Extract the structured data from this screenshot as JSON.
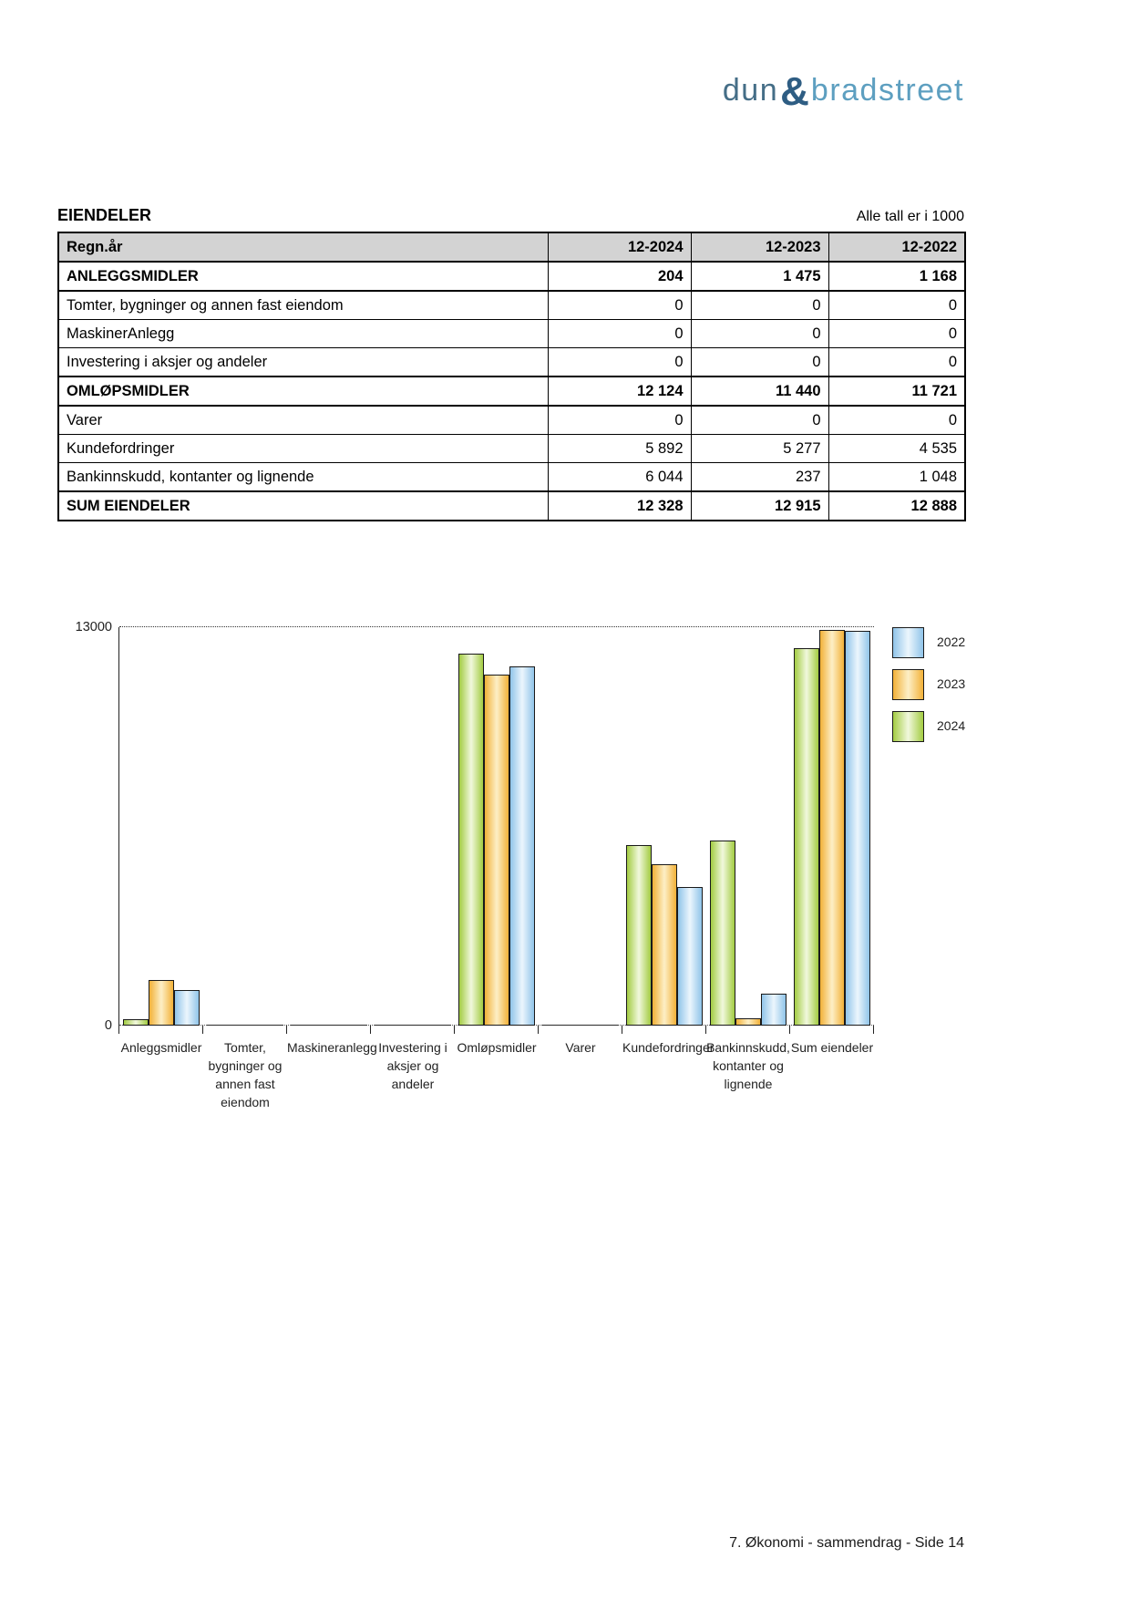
{
  "brand": {
    "word1": "dun",
    "ampersand": "&",
    "word2": "bradstreet",
    "word1_color": "#456e87",
    "amp_color": "#2e5d83",
    "word2_color": "#5d9fc0"
  },
  "header": {
    "title": "EIENDELER",
    "units_note": "Alle tall er i 1000"
  },
  "table": {
    "columns": [
      "Regn.år",
      "12-2024",
      "12-2023",
      "12-2022"
    ],
    "rows": [
      {
        "label": "ANLEGGSMIDLER",
        "values": [
          "204",
          "1 475",
          "1 168"
        ],
        "bold": true
      },
      {
        "label": "Tomter, bygninger og annen fast eiendom",
        "values": [
          "0",
          "0",
          "0"
        ],
        "bold": false
      },
      {
        "label": "MaskinerAnlegg",
        "values": [
          "0",
          "0",
          "0"
        ],
        "bold": false
      },
      {
        "label": "Investering i aksjer og andeler",
        "values": [
          "0",
          "0",
          "0"
        ],
        "bold": false
      },
      {
        "label": "OMLØPSMIDLER",
        "values": [
          "12 124",
          "11 440",
          "11 721"
        ],
        "bold": true
      },
      {
        "label": "Varer",
        "values": [
          "0",
          "0",
          "0"
        ],
        "bold": false
      },
      {
        "label": "Kundefordringer",
        "values": [
          "5 892",
          "5 277",
          "4 535"
        ],
        "bold": false
      },
      {
        "label": "Bankinnskudd, kontanter og lignende",
        "values": [
          "6 044",
          "237",
          "1 048"
        ],
        "bold": false
      },
      {
        "label": "SUM EIENDELER",
        "values": [
          "12 328",
          "12 915",
          "12 888"
        ],
        "bold": true
      }
    ]
  },
  "chart_data": {
    "type": "bar",
    "title": "",
    "xlabel": "",
    "ylabel": "",
    "categories": [
      "Anleggsmidler",
      "Tomter, bygninger og annen fast eiendom",
      "Maskineranlegg",
      "Investering i aksjer og andeler",
      "Omløpsmidler",
      "Varer",
      "Kundefordringer",
      "Bankinnskudd, kontanter og lignende",
      "Sum eiendeler"
    ],
    "series": [
      {
        "name": "2024",
        "values": [
          204,
          0,
          0,
          0,
          12124,
          0,
          5892,
          6044,
          12328
        ],
        "edge_color": "#a3cc42",
        "center_color": "#f1f8dd"
      },
      {
        "name": "2023",
        "values": [
          1475,
          0,
          0,
          0,
          11440,
          0,
          5277,
          237,
          12915
        ],
        "edge_color": "#f2b138",
        "center_color": "#fdefc6"
      },
      {
        "name": "2022",
        "values": [
          1168,
          0,
          0,
          0,
          11721,
          0,
          4535,
          1048,
          12888
        ],
        "edge_color": "#90c4e9",
        "center_color": "#ecf6fd"
      }
    ],
    "legend": [
      "2022",
      "2023",
      "2024"
    ],
    "legend_position": "right-top",
    "ylim": [
      0,
      13000
    ],
    "ytick_labels": [
      "13000",
      "0"
    ],
    "grid": "dotted horizontal line at y=13000; dotted baseline at y=0"
  },
  "footer": {
    "page_label": "7. Økonomi - sammendrag - Side 14"
  }
}
